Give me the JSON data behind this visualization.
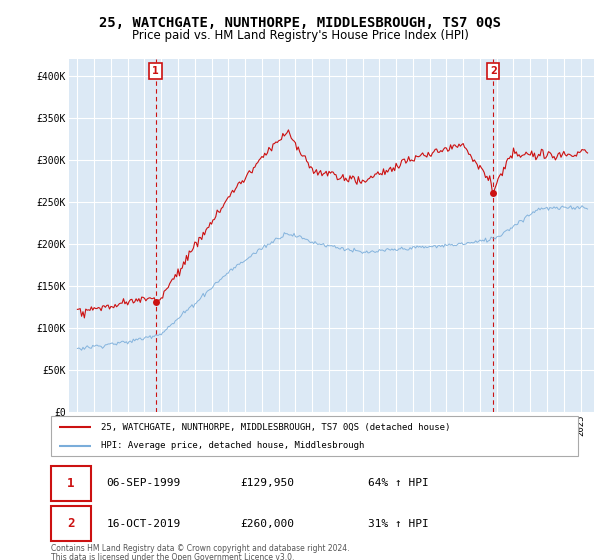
{
  "title": "25, WATCHGATE, NUNTHORPE, MIDDLESBROUGH, TS7 0QS",
  "subtitle": "Price paid vs. HM Land Registry's House Price Index (HPI)",
  "title_fontsize": 10,
  "subtitle_fontsize": 8.5,
  "background_color": "#ffffff",
  "plot_background_color": "#dce9f5",
  "grid_color": "#ffffff",
  "hpi_color": "#7aadda",
  "price_color": "#cc1111",
  "annotation_color": "#cc1111",
  "ylim": [
    0,
    420000
  ],
  "yticks": [
    0,
    50000,
    100000,
    150000,
    200000,
    250000,
    300000,
    350000,
    400000
  ],
  "ytick_labels": [
    "£0",
    "£50K",
    "£100K",
    "£150K",
    "£200K",
    "£250K",
    "£300K",
    "£350K",
    "£400K"
  ],
  "sale1_date": "06-SEP-1999",
  "sale1_price": 129950,
  "sale1_hpi_pct": "64%",
  "sale1_x": 1999.67,
  "sale2_date": "16-OCT-2019",
  "sale2_price": 260000,
  "sale2_hpi_pct": "31%",
  "sale2_x": 2019.79,
  "legend_line1": "25, WATCHGATE, NUNTHORPE, MIDDLESBROUGH, TS7 0QS (detached house)",
  "legend_line2": "HPI: Average price, detached house, Middlesbrough",
  "footer1": "Contains HM Land Registry data © Crown copyright and database right 2024.",
  "footer2": "This data is licensed under the Open Government Licence v3.0."
}
